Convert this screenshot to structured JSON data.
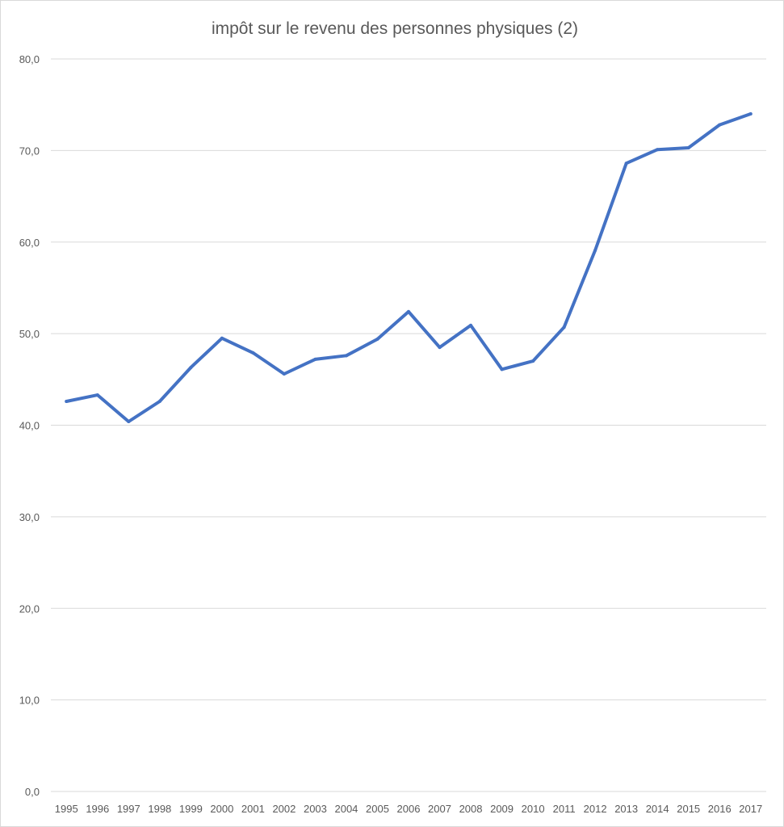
{
  "chart_data": {
    "type": "line",
    "title": "impôt sur le revenu des personnes physiques (2)",
    "xlabel": "",
    "ylabel": "",
    "ylim": [
      0,
      80
    ],
    "yticks": [
      "0,0",
      "10,0",
      "20,0",
      "30,0",
      "40,0",
      "50,0",
      "60,0",
      "70,0",
      "80,0"
    ],
    "categories": [
      "1995",
      "1996",
      "1997",
      "1998",
      "1999",
      "2000",
      "2001",
      "2002",
      "2003",
      "2004",
      "2005",
      "2006",
      "2007",
      "2008",
      "2009",
      "2010",
      "2011",
      "2012",
      "2013",
      "2014",
      "2015",
      "2016",
      "2017"
    ],
    "series": [
      {
        "values": [
          42.6,
          43.3,
          40.4,
          42.6,
          46.3,
          49.5,
          47.9,
          45.6,
          47.2,
          47.6,
          49.4,
          52.4,
          48.5,
          50.9,
          46.1,
          47.0,
          50.7,
          59.1,
          68.6,
          70.1,
          70.3,
          72.8,
          74.0
        ],
        "color": "#4472c4"
      }
    ],
    "grid": true,
    "legend": "none"
  }
}
